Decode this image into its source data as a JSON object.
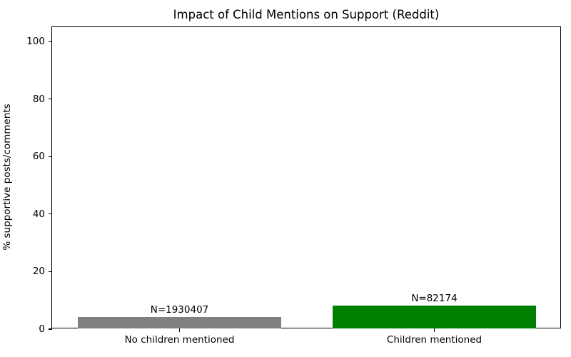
{
  "chart_data": {
    "type": "bar",
    "title": "Impact of Child Mentions on Support (Reddit)",
    "xlabel": "",
    "ylabel": "% supportive posts/comments",
    "categories": [
      "No children mentioned",
      "Children mentioned"
    ],
    "values": [
      4.3,
      8.3
    ],
    "bar_annotations": [
      "N=1930407",
      "N=82174"
    ],
    "bar_colors": [
      "#808080",
      "#008000"
    ],
    "yticks": [
      0,
      20,
      40,
      60,
      80,
      100
    ],
    "ylim": [
      0,
      105
    ],
    "xlim": [
      -0.5,
      1.5
    ],
    "bar_width_fraction": 0.8,
    "grid": false,
    "legend": null,
    "text_color": "#000000",
    "spine_color": "#000000",
    "background_color": "#ffffff"
  }
}
